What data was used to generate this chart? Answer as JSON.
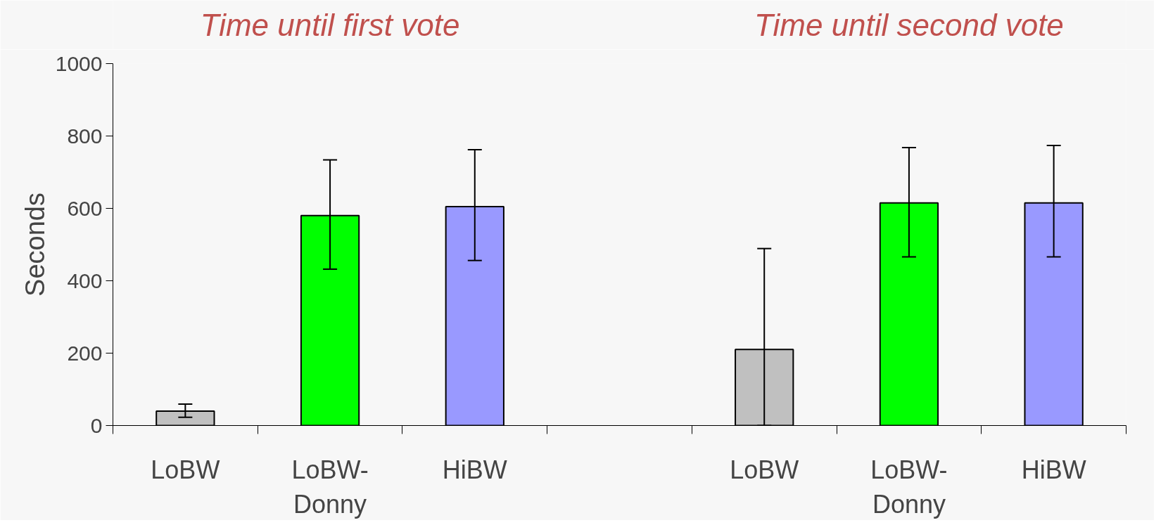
{
  "chart_data": {
    "type": "bar",
    "ylabel": "Seconds",
    "annotations": [
      "Time until first vote",
      "Time until second vote"
    ],
    "categories": [
      "LoBW",
      "LoBW-\nDonny",
      "HiBW",
      null,
      "LoBW",
      "LoBW-\nDonny",
      "HiBW"
    ],
    "values": [
      40,
      580,
      605,
      null,
      210,
      615,
      615
    ],
    "colors": [
      "#c0c0c0",
      "#00ff00",
      "#9999ff",
      "#ffffff",
      "#c0c0c0",
      "#00ff00",
      "#9999ff"
    ],
    "errors": [
      [
        23,
        59
      ],
      [
        432,
        734
      ],
      [
        456,
        762
      ],
      null,
      [
        0,
        489
      ],
      [
        466,
        768
      ],
      [
        466,
        774
      ]
    ],
    "ylim": [
      0,
      1000
    ],
    "yticks": [
      0,
      200,
      400,
      600,
      800,
      1000
    ],
    "grid": false
  }
}
